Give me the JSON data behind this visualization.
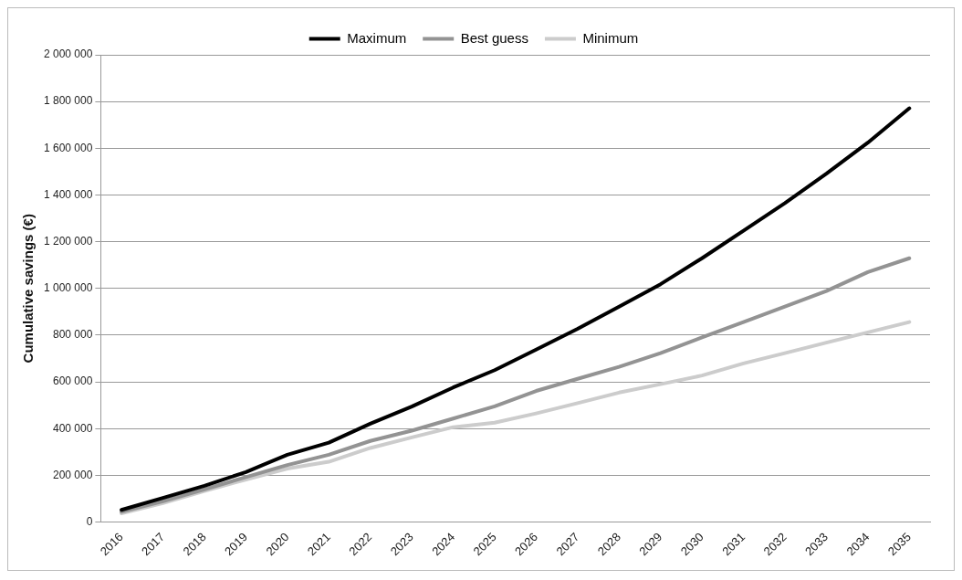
{
  "chart_data": {
    "type": "line",
    "ylabel": "Cumulative savings (€)",
    "categories": [
      "2016",
      "2017",
      "2018",
      "2019",
      "2020",
      "2021",
      "2022",
      "2023",
      "2024",
      "2025",
      "2026",
      "2027",
      "2028",
      "2029",
      "2030",
      "2031",
      "2032",
      "2033",
      "2034",
      "2035"
    ],
    "series": [
      {
        "name": "Maximum",
        "color": "#000000",
        "values": [
          52000,
          103000,
          155000,
          214000,
          288000,
          340000,
          421000,
          494000,
          576000,
          650000,
          738000,
          827000,
          922000,
          1018000,
          1129000,
          1247000,
          1365000,
          1491000,
          1624000,
          1771000
        ]
      },
      {
        "name": "Best guess",
        "color": "#939393",
        "values": [
          44000,
          89000,
          140000,
          192000,
          244000,
          288000,
          347000,
          391000,
          443000,
          495000,
          561000,
          613000,
          664000,
          723000,
          790000,
          856000,
          922000,
          989000,
          1070000,
          1129000
        ]
      },
      {
        "name": "Minimum",
        "color": "#cccccc",
        "values": [
          37000,
          81000,
          133000,
          182000,
          229000,
          258000,
          317000,
          362000,
          406000,
          425000,
          465000,
          509000,
          554000,
          590000,
          627000,
          679000,
          723000,
          768000,
          812000,
          856000
        ]
      }
    ],
    "ylim": [
      0,
      2000000
    ],
    "yticks": [
      0,
      {
        "value": 200000,
        "label": "200 000"
      },
      {
        "value": 400000,
        "label": "400 000"
      },
      {
        "value": 600000,
        "label": "600 000"
      },
      {
        "value": 800000,
        "label": "800 000"
      },
      {
        "value": 1000000,
        "label": "1 000 000"
      },
      {
        "value": 1200000,
        "label": "1 200 000"
      },
      {
        "value": 1400000,
        "label": "1 400 000"
      },
      {
        "value": 1600000,
        "label": "1 600 000"
      },
      {
        "value": 1800000,
        "label": "1 800 000"
      },
      {
        "value": 2000000,
        "label": "2 000 000"
      }
    ],
    "grid": "y",
    "legend": "top",
    "marker": "none",
    "line_style": "solid"
  }
}
